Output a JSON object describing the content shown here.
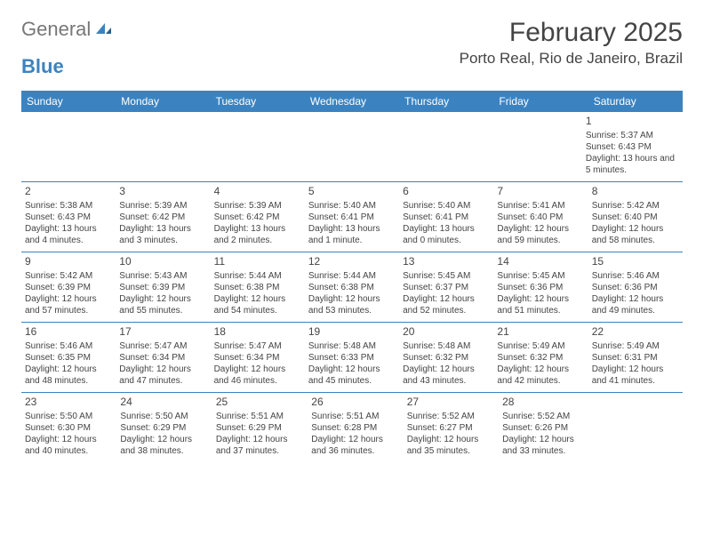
{
  "logo": {
    "text_general": "General",
    "text_blue": "Blue"
  },
  "title": "February 2025",
  "location": "Porto Real, Rio de Janeiro, Brazil",
  "colors": {
    "header_bg": "#3b83c0",
    "header_text": "#ffffff",
    "border": "#3b83c0",
    "body_text": "#444444",
    "logo_gray": "#777777",
    "logo_blue": "#3b83c0",
    "background": "#ffffff"
  },
  "day_names": [
    "Sunday",
    "Monday",
    "Tuesday",
    "Wednesday",
    "Thursday",
    "Friday",
    "Saturday"
  ],
  "weeks": [
    [
      null,
      null,
      null,
      null,
      null,
      null,
      {
        "n": "1",
        "sunrise": "Sunrise: 5:37 AM",
        "sunset": "Sunset: 6:43 PM",
        "daylight": "Daylight: 13 hours and 5 minutes."
      }
    ],
    [
      {
        "n": "2",
        "sunrise": "Sunrise: 5:38 AM",
        "sunset": "Sunset: 6:43 PM",
        "daylight": "Daylight: 13 hours and 4 minutes."
      },
      {
        "n": "3",
        "sunrise": "Sunrise: 5:39 AM",
        "sunset": "Sunset: 6:42 PM",
        "daylight": "Daylight: 13 hours and 3 minutes."
      },
      {
        "n": "4",
        "sunrise": "Sunrise: 5:39 AM",
        "sunset": "Sunset: 6:42 PM",
        "daylight": "Daylight: 13 hours and 2 minutes."
      },
      {
        "n": "5",
        "sunrise": "Sunrise: 5:40 AM",
        "sunset": "Sunset: 6:41 PM",
        "daylight": "Daylight: 13 hours and 1 minute."
      },
      {
        "n": "6",
        "sunrise": "Sunrise: 5:40 AM",
        "sunset": "Sunset: 6:41 PM",
        "daylight": "Daylight: 13 hours and 0 minutes."
      },
      {
        "n": "7",
        "sunrise": "Sunrise: 5:41 AM",
        "sunset": "Sunset: 6:40 PM",
        "daylight": "Daylight: 12 hours and 59 minutes."
      },
      {
        "n": "8",
        "sunrise": "Sunrise: 5:42 AM",
        "sunset": "Sunset: 6:40 PM",
        "daylight": "Daylight: 12 hours and 58 minutes."
      }
    ],
    [
      {
        "n": "9",
        "sunrise": "Sunrise: 5:42 AM",
        "sunset": "Sunset: 6:39 PM",
        "daylight": "Daylight: 12 hours and 57 minutes."
      },
      {
        "n": "10",
        "sunrise": "Sunrise: 5:43 AM",
        "sunset": "Sunset: 6:39 PM",
        "daylight": "Daylight: 12 hours and 55 minutes."
      },
      {
        "n": "11",
        "sunrise": "Sunrise: 5:44 AM",
        "sunset": "Sunset: 6:38 PM",
        "daylight": "Daylight: 12 hours and 54 minutes."
      },
      {
        "n": "12",
        "sunrise": "Sunrise: 5:44 AM",
        "sunset": "Sunset: 6:38 PM",
        "daylight": "Daylight: 12 hours and 53 minutes."
      },
      {
        "n": "13",
        "sunrise": "Sunrise: 5:45 AM",
        "sunset": "Sunset: 6:37 PM",
        "daylight": "Daylight: 12 hours and 52 minutes."
      },
      {
        "n": "14",
        "sunrise": "Sunrise: 5:45 AM",
        "sunset": "Sunset: 6:36 PM",
        "daylight": "Daylight: 12 hours and 51 minutes."
      },
      {
        "n": "15",
        "sunrise": "Sunrise: 5:46 AM",
        "sunset": "Sunset: 6:36 PM",
        "daylight": "Daylight: 12 hours and 49 minutes."
      }
    ],
    [
      {
        "n": "16",
        "sunrise": "Sunrise: 5:46 AM",
        "sunset": "Sunset: 6:35 PM",
        "daylight": "Daylight: 12 hours and 48 minutes."
      },
      {
        "n": "17",
        "sunrise": "Sunrise: 5:47 AM",
        "sunset": "Sunset: 6:34 PM",
        "daylight": "Daylight: 12 hours and 47 minutes."
      },
      {
        "n": "18",
        "sunrise": "Sunrise: 5:47 AM",
        "sunset": "Sunset: 6:34 PM",
        "daylight": "Daylight: 12 hours and 46 minutes."
      },
      {
        "n": "19",
        "sunrise": "Sunrise: 5:48 AM",
        "sunset": "Sunset: 6:33 PM",
        "daylight": "Daylight: 12 hours and 45 minutes."
      },
      {
        "n": "20",
        "sunrise": "Sunrise: 5:48 AM",
        "sunset": "Sunset: 6:32 PM",
        "daylight": "Daylight: 12 hours and 43 minutes."
      },
      {
        "n": "21",
        "sunrise": "Sunrise: 5:49 AM",
        "sunset": "Sunset: 6:32 PM",
        "daylight": "Daylight: 12 hours and 42 minutes."
      },
      {
        "n": "22",
        "sunrise": "Sunrise: 5:49 AM",
        "sunset": "Sunset: 6:31 PM",
        "daylight": "Daylight: 12 hours and 41 minutes."
      }
    ],
    [
      {
        "n": "23",
        "sunrise": "Sunrise: 5:50 AM",
        "sunset": "Sunset: 6:30 PM",
        "daylight": "Daylight: 12 hours and 40 minutes."
      },
      {
        "n": "24",
        "sunrise": "Sunrise: 5:50 AM",
        "sunset": "Sunset: 6:29 PM",
        "daylight": "Daylight: 12 hours and 38 minutes."
      },
      {
        "n": "25",
        "sunrise": "Sunrise: 5:51 AM",
        "sunset": "Sunset: 6:29 PM",
        "daylight": "Daylight: 12 hours and 37 minutes."
      },
      {
        "n": "26",
        "sunrise": "Sunrise: 5:51 AM",
        "sunset": "Sunset: 6:28 PM",
        "daylight": "Daylight: 12 hours and 36 minutes."
      },
      {
        "n": "27",
        "sunrise": "Sunrise: 5:52 AM",
        "sunset": "Sunset: 6:27 PM",
        "daylight": "Daylight: 12 hours and 35 minutes."
      },
      {
        "n": "28",
        "sunrise": "Sunrise: 5:52 AM",
        "sunset": "Sunset: 6:26 PM",
        "daylight": "Daylight: 12 hours and 33 minutes."
      },
      null
    ]
  ]
}
